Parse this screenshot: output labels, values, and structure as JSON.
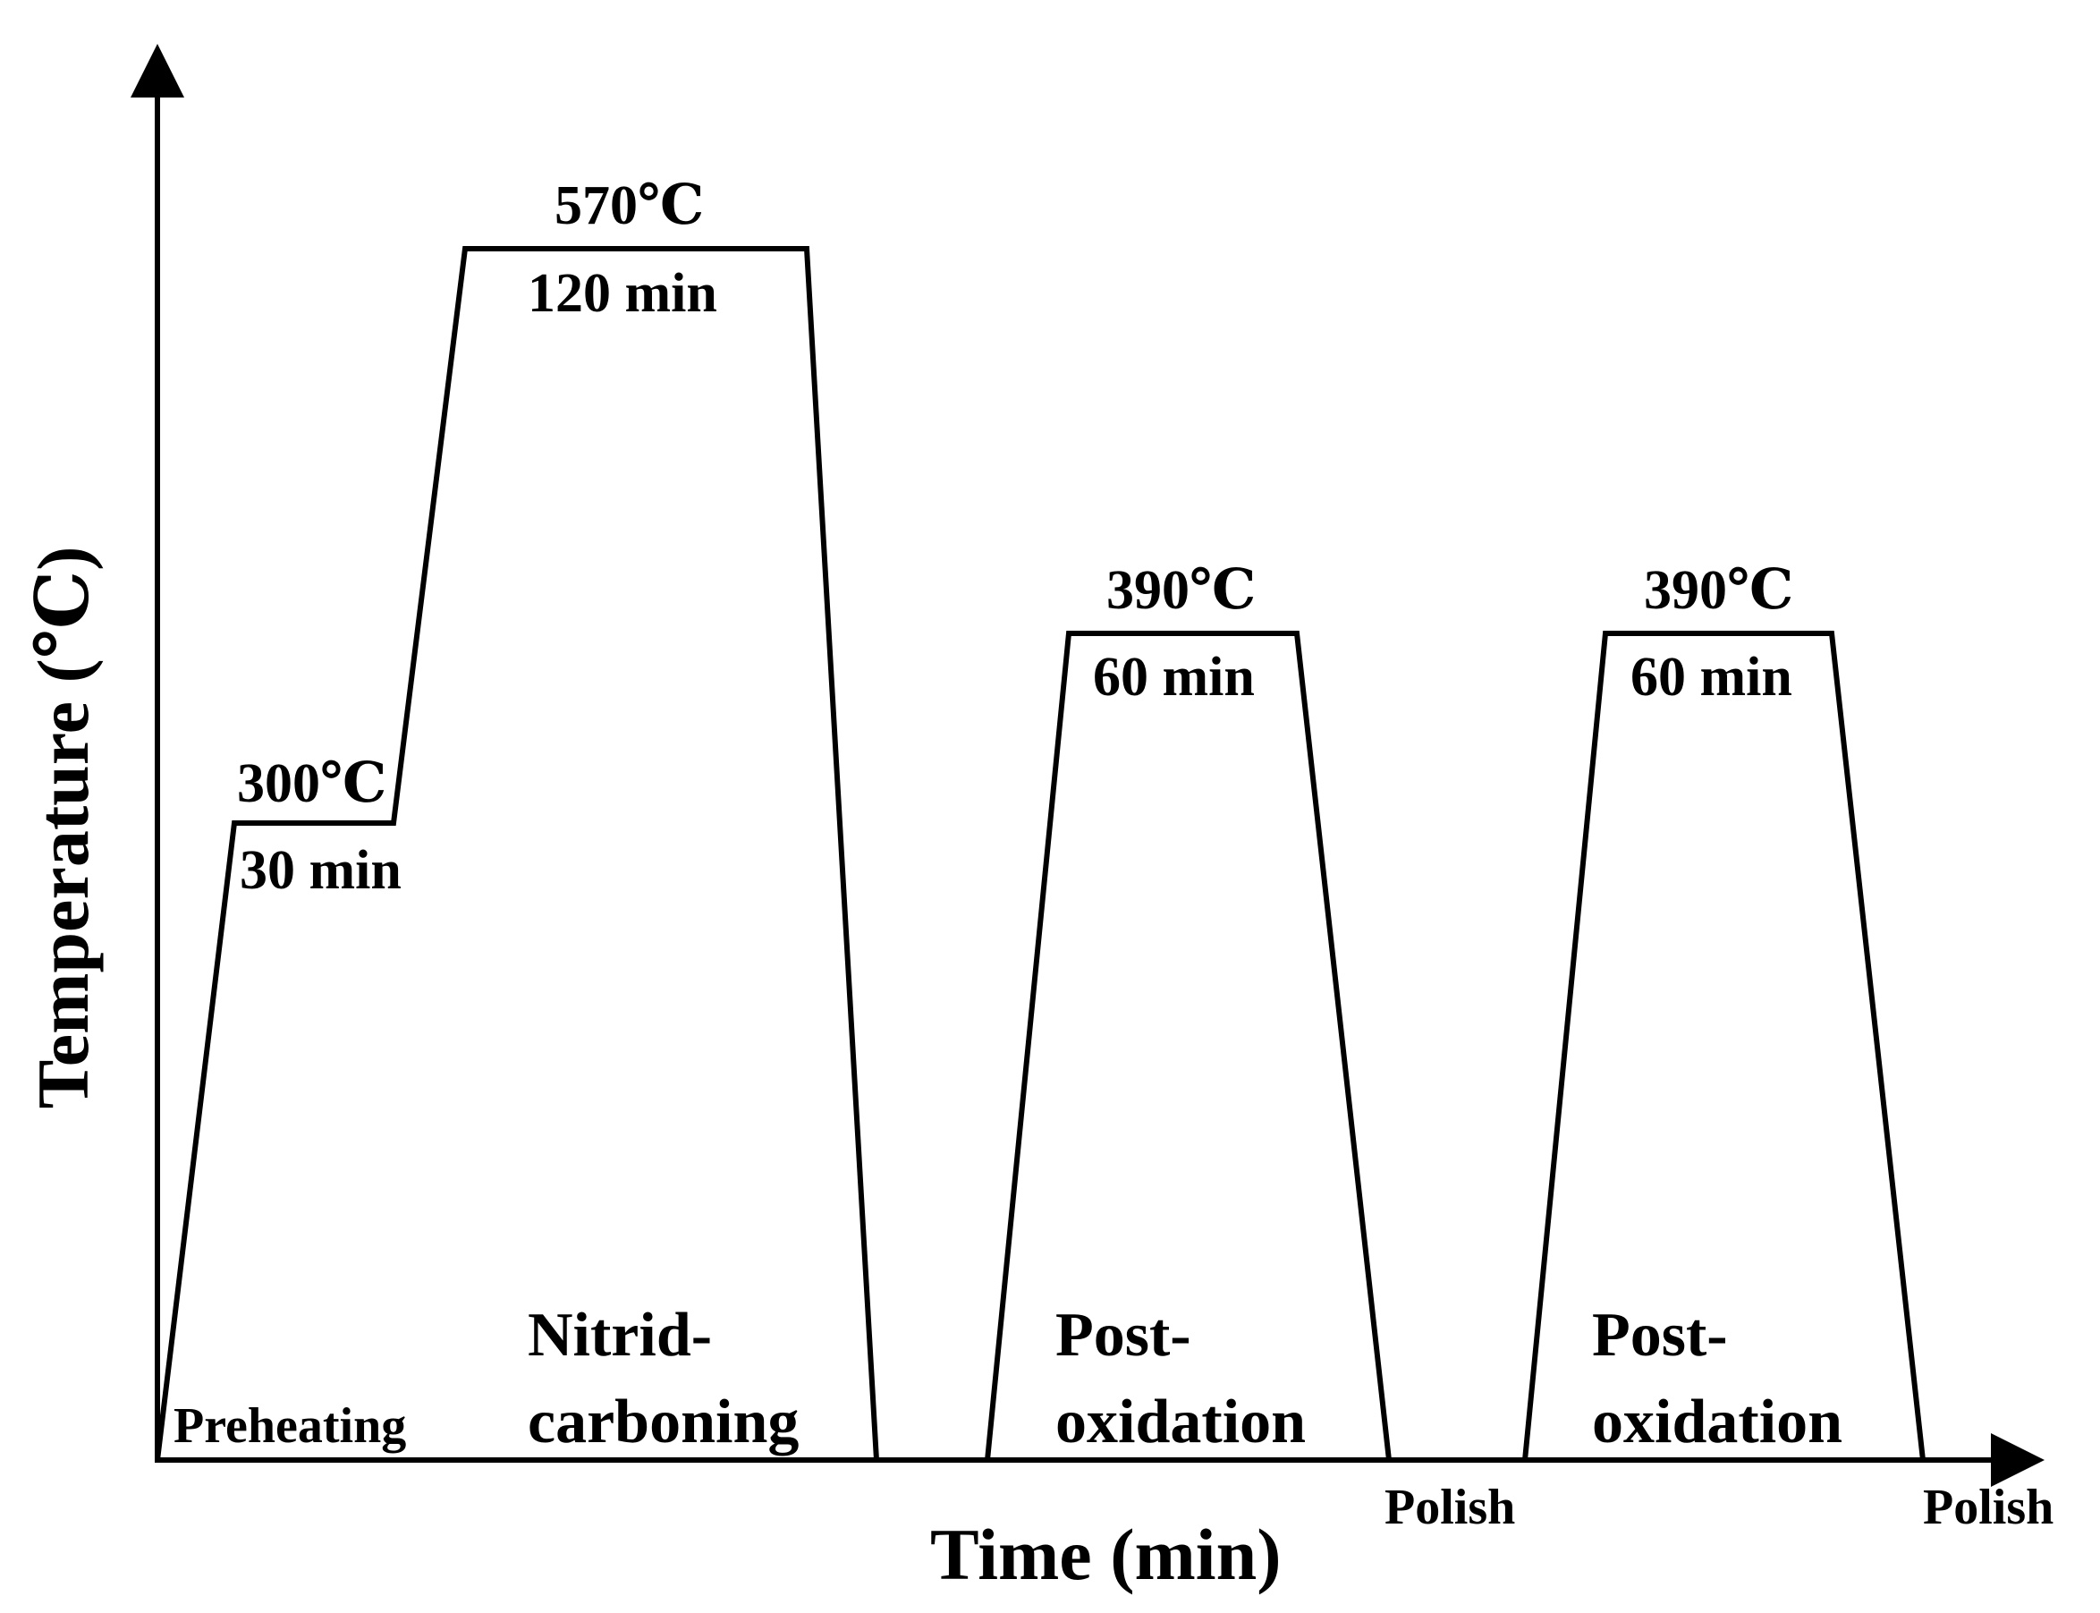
{
  "diagram": {
    "y_axis_title": "Temperature (℃)",
    "x_axis_title": "Time (min)",
    "stages": [
      {
        "phase": [
          "Preheating"
        ],
        "temperature": "300℃",
        "duration": "30 min"
      },
      {
        "phase": [
          "Nitrid-",
          "carboning"
        ],
        "temperature": "570℃",
        "duration": "120 min"
      },
      {
        "phase": [
          "Post-",
          "oxidation"
        ],
        "temperature": "390℃",
        "duration": "60 min"
      },
      {
        "phase": [
          "Post-",
          "oxidation"
        ],
        "temperature": "390℃",
        "duration": "60 min"
      }
    ],
    "polish_labels": [
      "Polish",
      "Polish"
    ]
  },
  "colors": {
    "line": "#000000",
    "background": "#ffffff"
  }
}
